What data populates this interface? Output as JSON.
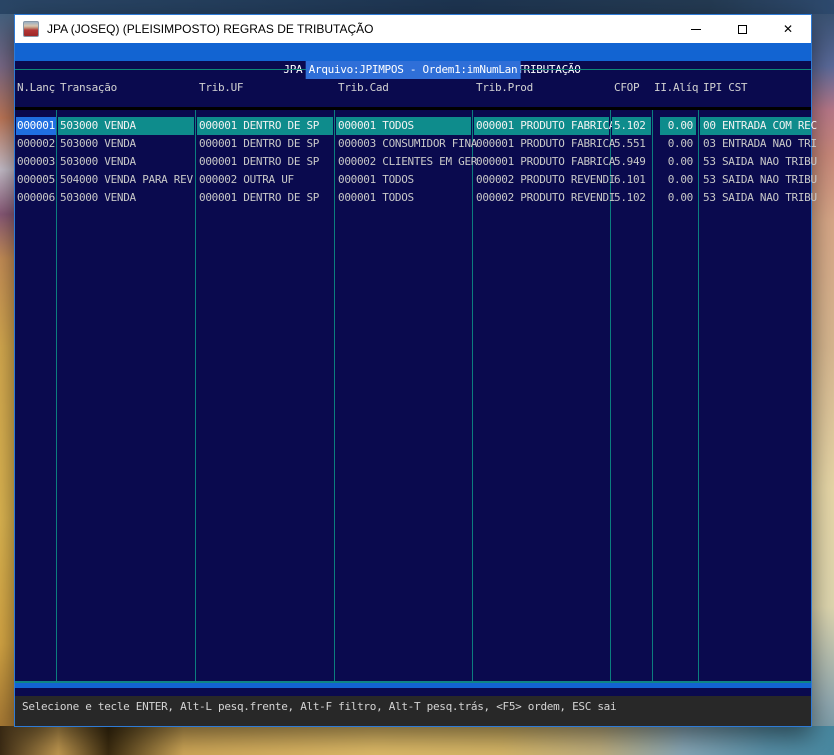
{
  "window": {
    "title": "JPA (JOSEQ) (PLEISIMPOSTO) REGRAS DE TRIBUTAÇÃO",
    "controls": {
      "minimize": "minimize",
      "maximize": "maximize",
      "close": "✕"
    }
  },
  "console": {
    "header_title": "JPA (JOSEQ) (PLEISIMPOSTO) REGRAS DE TRIBUTAÇÃO",
    "file_order": "Arquivo:JPIMPOS - Ordem1:imNumLan",
    "columns": [
      {
        "key": "nlanc",
        "label": "N.Lanç"
      },
      {
        "key": "transacao",
        "label": "Transação"
      },
      {
        "key": "trib_uf",
        "label": "Trib.UF"
      },
      {
        "key": "trib_cad",
        "label": "Trib.Cad"
      },
      {
        "key": "trib_prod",
        "label": "Trib.Prod"
      },
      {
        "key": "cfop",
        "label": "CFOP"
      },
      {
        "key": "ii_aliq",
        "label": "II.Alíq"
      },
      {
        "key": "ipi_cst",
        "label": "IPI CST"
      }
    ],
    "rows": [
      {
        "selected": true,
        "nlanc": "000001",
        "transacao": "503000 VENDA",
        "trib_uf": "000001 DENTRO DE SP",
        "trib_cad": "000001 TODOS",
        "trib_prod": "000001 PRODUTO FABRICA",
        "cfop": "5.102",
        "ii_aliq": "0.00",
        "ipi_cst": "00 ENTRADA COM REC"
      },
      {
        "selected": false,
        "nlanc": "000002",
        "transacao": "503000 VENDA",
        "trib_uf": "000001 DENTRO DE SP",
        "trib_cad": "000003 CONSUMIDOR FINA",
        "trib_prod": "000001 PRODUTO FABRICA",
        "cfop": "5.551",
        "ii_aliq": "0.00",
        "ipi_cst": "03 ENTRADA NAO TRI"
      },
      {
        "selected": false,
        "nlanc": "000003",
        "transacao": "503000 VENDA",
        "trib_uf": "000001 DENTRO DE SP",
        "trib_cad": "000002 CLIENTES EM GER",
        "trib_prod": "000001 PRODUTO FABRICA",
        "cfop": "5.949",
        "ii_aliq": "0.00",
        "ipi_cst": "53 SAIDA NAO TRIBU"
      },
      {
        "selected": false,
        "nlanc": "000005",
        "transacao": "504000 VENDA PARA REV",
        "trib_uf": "000002 OUTRA UF",
        "trib_cad": "000001 TODOS",
        "trib_prod": "000002 PRODUTO REVENDI",
        "cfop": "6.101",
        "ii_aliq": "0.00",
        "ipi_cst": "53 SAIDA NAO TRIBU"
      },
      {
        "selected": false,
        "nlanc": "000006",
        "transacao": "503000 VENDA",
        "trib_uf": "000001 DENTRO DE SP",
        "trib_cad": "000001 TODOS",
        "trib_prod": "000002 PRODUTO REVENDI",
        "cfop": "5.102",
        "ii_aliq": "0.00",
        "ipi_cst": "53 SAIDA NAO TRIBU"
      }
    ],
    "status": "Selecione e tecle ENTER, Alt-L pesq.frente, Alt-F filtro, Alt-T pesq.trás, <F5> ordem, ESC sai",
    "colors": {
      "background": "#0a0a4e",
      "header_bar": "#1264d2",
      "highlight_row": "#0e8c8c",
      "selected_cell": "#1f6fe0",
      "separator_teal": "#0b7e7e",
      "status_bar": "#282828",
      "text": "#c8c8c8"
    }
  }
}
